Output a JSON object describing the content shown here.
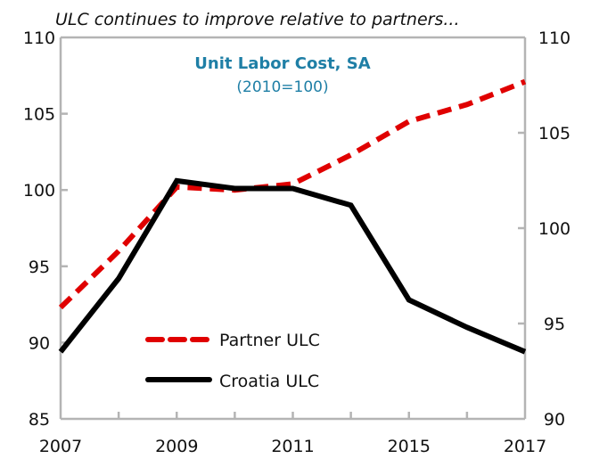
{
  "chart_data": {
    "type": "line",
    "subtitle": "ULC continues to improve relative to partners...",
    "title": "Unit Labor Cost, SA",
    "title_note": "(2010=100)",
    "title_color": "#1f7fa6",
    "x": [
      0,
      1,
      2,
      3,
      4,
      5,
      6,
      7,
      8
    ],
    "x_tick_positions": [
      0,
      2,
      4,
      6,
      8
    ],
    "x_tick_labels": [
      "2007",
      "2009",
      "2011",
      "2015",
      "2017"
    ],
    "x_ticks_count": 9,
    "xlim": [
      0,
      8
    ],
    "y_left": {
      "ylim": [
        85,
        110
      ],
      "ticks": [
        85,
        90,
        95,
        100,
        105,
        110
      ],
      "tick_labels": [
        "85",
        "90",
        "95",
        "100",
        "105",
        "110"
      ]
    },
    "y_right": {
      "ylim": [
        90,
        110
      ],
      "ticks": [
        90,
        95,
        100,
        105,
        110
      ],
      "tick_labels": [
        "90",
        "95",
        "100",
        "105",
        "110"
      ]
    },
    "grid": false,
    "legend_position": "bottom-left-inside",
    "series": [
      {
        "name": "Partner ULC",
        "axis": "left",
        "style": "dashed",
        "color": "#e00000",
        "values": [
          92.3,
          96.0,
          100.2,
          100.0,
          100.4,
          102.3,
          104.5,
          105.6,
          107.1
        ]
      },
      {
        "name": "Croatia ULC",
        "axis": "left",
        "style": "solid",
        "color": "#000000",
        "values": [
          89.4,
          94.2,
          100.6,
          100.1,
          100.1,
          99.0,
          92.8,
          91.0,
          89.4
        ]
      }
    ]
  }
}
